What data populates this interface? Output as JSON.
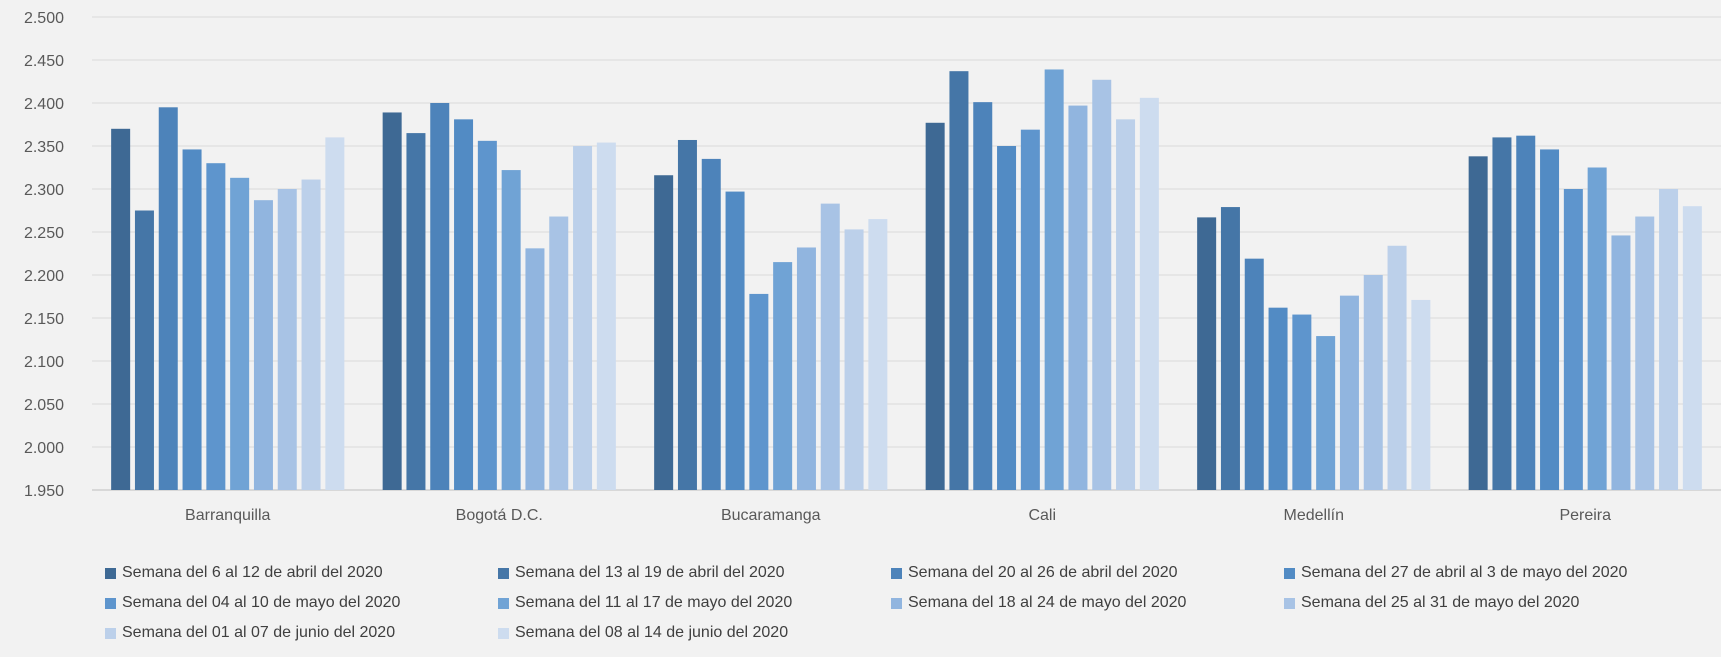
{
  "chart_data": {
    "type": "bar",
    "title": "",
    "xlabel": "",
    "ylabel": "",
    "ylim": [
      1950,
      2500
    ],
    "yticks": [
      1950,
      2000,
      2050,
      2100,
      2150,
      2200,
      2250,
      2300,
      2350,
      2400,
      2450,
      2500
    ],
    "ytick_labels": [
      "1.950",
      "2.000",
      "2.050",
      "2.100",
      "2.150",
      "2.200",
      "2.250",
      "2.300",
      "2.350",
      "2.400",
      "2.450",
      "2.500"
    ],
    "grid": true,
    "legend_position": "bottom",
    "categories": [
      "Barranquilla",
      "Bogotá D.C.",
      "Bucaramanga",
      "Cali",
      "Medellín",
      "Pereira"
    ],
    "series": [
      {
        "name": "Semana del 6 al 12 de abril del 2020",
        "color": "#3e6994",
        "values": [
          2370,
          2389,
          2316,
          2377,
          2267,
          2338
        ]
      },
      {
        "name": "Semana del 13 al 19 de abril del 2020",
        "color": "#4576a7",
        "values": [
          2275,
          2365,
          2357,
          2437,
          2279,
          2360
        ]
      },
      {
        "name": "Semana del 20 al 26 de abril del 2020",
        "color": "#4d83ba",
        "values": [
          2395,
          2400,
          2335,
          2401,
          2219,
          2362
        ]
      },
      {
        "name": "Semana del 27 de abril al 3 de mayo del 2020",
        "color": "#528bc4",
        "values": [
          2346,
          2381,
          2297,
          2350,
          2162,
          2346
        ]
      },
      {
        "name": "Semana del 04 al 10 de mayo del 2020",
        "color": "#5e95cd",
        "values": [
          2330,
          2356,
          2178,
          2369,
          2154,
          2300
        ]
      },
      {
        "name": "Semana del 11 al 17 de mayo del 2020",
        "color": "#70a3d5",
        "values": [
          2313,
          2322,
          2215,
          2439,
          2129,
          2325
        ]
      },
      {
        "name": "Semana del 18 al 24 de mayo del 2020",
        "color": "#91b5df",
        "values": [
          2287,
          2231,
          2232,
          2397,
          2176,
          2246
        ]
      },
      {
        "name": "Semana del 25 al 31 de mayo del 2020",
        "color": "#a8c3e5",
        "values": [
          2300,
          2268,
          2283,
          2427,
          2200,
          2268
        ]
      },
      {
        "name": "Semana del 01 al 07 de junio del 2020",
        "color": "#bcd0ea",
        "values": [
          2311,
          2350,
          2253,
          2381,
          2234,
          2300
        ]
      },
      {
        "name": "Semana del 08 al 14 de junio del 2020",
        "color": "#cddcef",
        "values": [
          2360,
          2354,
          2265,
          2406,
          2171,
          2280
        ]
      }
    ]
  }
}
